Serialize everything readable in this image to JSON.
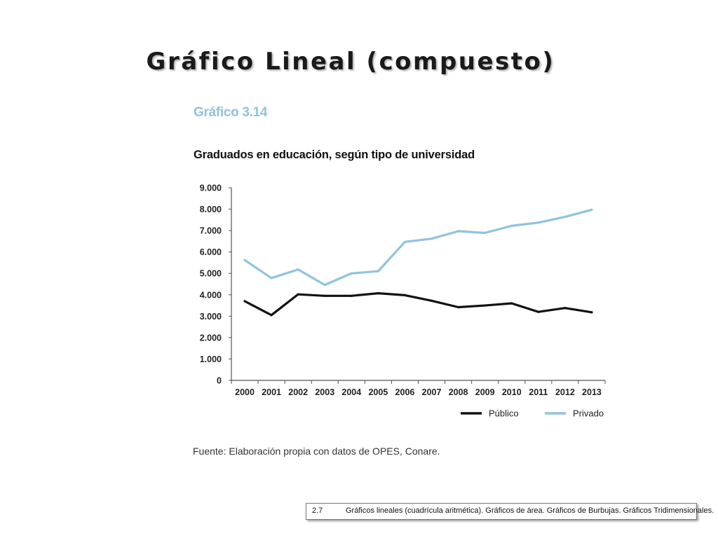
{
  "slide": {
    "title": "Gráfico Lineal (compuesto)"
  },
  "figure": {
    "number": "Gráfico 3.14",
    "source": "Fuente: Elaboración propia con datos de OPES, Conare."
  },
  "footer": {
    "section": "2.7",
    "text": "Gráficos lineales (cuadrícula aritmética). Gráficos de área. Gráficos de Burbujas. Gráficos Tridimensionales."
  },
  "chart_data": {
    "type": "line",
    "title": "Graduados en educación, según tipo de universidad",
    "xlabel": "",
    "ylabel": "",
    "categories": [
      "2000",
      "2001",
      "2002",
      "2003",
      "2004",
      "2005",
      "2006",
      "2007",
      "2008",
      "2009",
      "2010",
      "2011",
      "2012",
      "2013"
    ],
    "yticks": [
      "0",
      "1.000",
      "2.000",
      "3.000",
      "4.000",
      "5.000",
      "6.000",
      "7.000",
      "8.000",
      "9.000"
    ],
    "ylim": [
      0,
      9000
    ],
    "grid": false,
    "legend_position": "bottom-right",
    "series": [
      {
        "name": "Público",
        "color": "#111111",
        "values": [
          3700,
          3050,
          4020,
          3950,
          3950,
          4070,
          3980,
          3720,
          3420,
          3500,
          3600,
          3200,
          3380,
          3180
        ]
      },
      {
        "name": "Privado",
        "color": "#8fc3de",
        "values": [
          5620,
          4780,
          5180,
          4460,
          5000,
          5100,
          6470,
          6620,
          6970,
          6890,
          7220,
          7370,
          7640,
          7970
        ]
      }
    ]
  }
}
